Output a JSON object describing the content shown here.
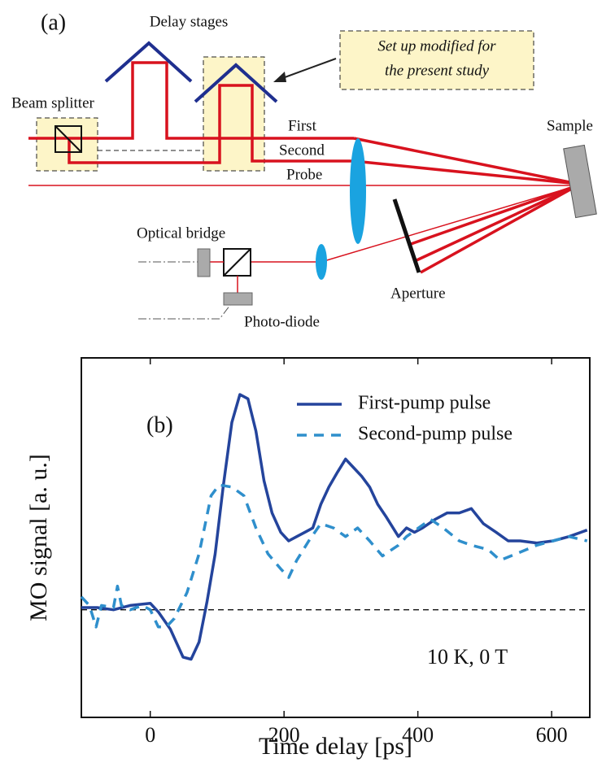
{
  "diagram": {
    "panel_label": "(a)",
    "delay_stages": "Delay stages",
    "note": [
      "Set up modified for",
      "the present study"
    ],
    "beam_splitter": "Beam splitter",
    "beams": [
      "First",
      "Second",
      "Probe"
    ],
    "sample": "Sample",
    "optical_bridge": "Optical bridge",
    "aperture": "Aperture",
    "photo_diode": "Photo-diode"
  },
  "chart_data": {
    "type": "line",
    "panel_label": "(b)",
    "annotation": "10 K, 0 T",
    "xlabel": "Time delay [ps]",
    "ylabel": "MO signal [a. u.]",
    "xlim": [
      -103,
      657
    ],
    "xticks": [
      0,
      200,
      400,
      600
    ],
    "ylim": [
      -0.5,
      1.17
    ],
    "legend": "upper right",
    "series": [
      {
        "name": "First-pump pulse",
        "color": "#24449c",
        "style": "solid",
        "x": [
          -103,
          -79,
          -55,
          -30,
          0,
          12,
          30,
          49,
          61,
          73,
          85,
          97,
          109,
          122,
          134,
          146,
          158,
          170,
          182,
          195,
          207,
          219,
          231,
          243,
          255,
          267,
          280,
          292,
          304,
          316,
          328,
          340,
          353,
          371,
          383,
          395,
          407,
          426,
          444,
          462,
          480,
          498,
          517,
          535,
          553,
          578,
          602,
          626,
          644,
          653
        ],
        "values": [
          0.01,
          0.01,
          0,
          0.02,
          0.03,
          -0.01,
          -0.09,
          -0.22,
          -0.23,
          -0.15,
          0.04,
          0.26,
          0.57,
          0.87,
          1.0,
          0.98,
          0.83,
          0.6,
          0.45,
          0.36,
          0.32,
          0.34,
          0.36,
          0.38,
          0.49,
          0.57,
          0.64,
          0.7,
          0.66,
          0.62,
          0.57,
          0.49,
          0.43,
          0.34,
          0.38,
          0.36,
          0.38,
          0.42,
          0.45,
          0.45,
          0.47,
          0.4,
          0.36,
          0.32,
          0.32,
          0.31,
          0.32,
          0.34,
          0.36,
          0.37
        ]
      },
      {
        "name": "Second-pump pulse",
        "color": "#2f8fcc",
        "style": "dashed",
        "x": [
          -103,
          -91,
          -81,
          -73,
          -55,
          -49,
          -43,
          -30,
          -12,
          0,
          12,
          24,
          36,
          55,
          73,
          91,
          103,
          122,
          140,
          158,
          176,
          195,
          207,
          219,
          237,
          255,
          274,
          292,
          310,
          328,
          347,
          371,
          383,
          401,
          419,
          438,
          462,
          480,
          505,
          523,
          547,
          578,
          602,
          626,
          653
        ],
        "values": [
          0.06,
          0.02,
          -0.08,
          0.02,
          0.01,
          0.11,
          0.02,
          0,
          0.02,
          0,
          -0.08,
          -0.08,
          -0.04,
          0.08,
          0.26,
          0.53,
          0.58,
          0.57,
          0.53,
          0.38,
          0.26,
          0.19,
          0.15,
          0.23,
          0.32,
          0.4,
          0.38,
          0.34,
          0.38,
          0.32,
          0.25,
          0.3,
          0.34,
          0.38,
          0.42,
          0.38,
          0.32,
          0.3,
          0.28,
          0.23,
          0.26,
          0.3,
          0.32,
          0.34,
          0.32
        ]
      }
    ]
  }
}
